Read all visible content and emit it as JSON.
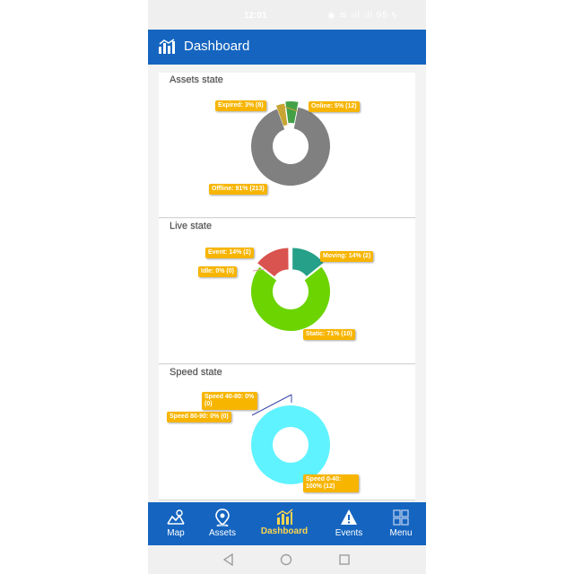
{
  "status": {
    "time": "12:01",
    "icons_text": "◉ ≋ ıll ıll 95 ϟ"
  },
  "header": {
    "title": "Dashboard"
  },
  "cards": [
    {
      "title": "Assets state",
      "slices": [
        {
          "label": "Expired: 3% (8)",
          "value": 8,
          "color": "#c8a532"
        },
        {
          "label": "Online: 5% (12)",
          "value": 12,
          "color": "#43a047"
        },
        {
          "label": "Offline: 91% (213)",
          "value": 213,
          "color": "#808080"
        }
      ]
    },
    {
      "title": "Live state",
      "slices": [
        {
          "label": "Event: 14% (2)",
          "value": 2,
          "color": "#d9534f"
        },
        {
          "label": "Idle: 0% (0)",
          "value": 0,
          "color": "#e0a0b0"
        },
        {
          "label": "Moving: 14% (2)",
          "value": 2,
          "color": "#26a088"
        },
        {
          "label": "Static: 71% (10)",
          "value": 10,
          "color": "#6cd400"
        }
      ]
    },
    {
      "title": "Speed state",
      "slices": [
        {
          "label": "Speed 40-80: 0% (0)",
          "value": 0,
          "color": "#3949ab"
        },
        {
          "label": "Speed 80-90: 0% (0)",
          "value": 0,
          "color": "#3949ab"
        },
        {
          "label": "Speed 0-40: 100% (12)",
          "value": 12,
          "color": "#5ff3ff"
        }
      ]
    }
  ],
  "chart_data": [
    {
      "type": "pie",
      "title": "Assets state",
      "categories": [
        "Expired",
        "Online",
        "Offline"
      ],
      "values": [
        8,
        12,
        213
      ]
    },
    {
      "type": "pie",
      "title": "Live state",
      "categories": [
        "Event",
        "Idle",
        "Moving",
        "Static"
      ],
      "values": [
        2,
        0,
        2,
        10
      ]
    },
    {
      "type": "pie",
      "title": "Speed state",
      "categories": [
        "Speed 40-80",
        "Speed 80-90",
        "Speed 0-40"
      ],
      "values": [
        0,
        0,
        12
      ]
    }
  ],
  "nav": [
    {
      "label": "Map",
      "icon": "map-icon"
    },
    {
      "label": "Assets",
      "icon": "location-pin-icon"
    },
    {
      "label": "Dashboard",
      "icon": "bar-chart-icon",
      "active": true
    },
    {
      "label": "Events",
      "icon": "warning-icon"
    },
    {
      "label": "Menu",
      "icon": "grid-icon"
    }
  ]
}
